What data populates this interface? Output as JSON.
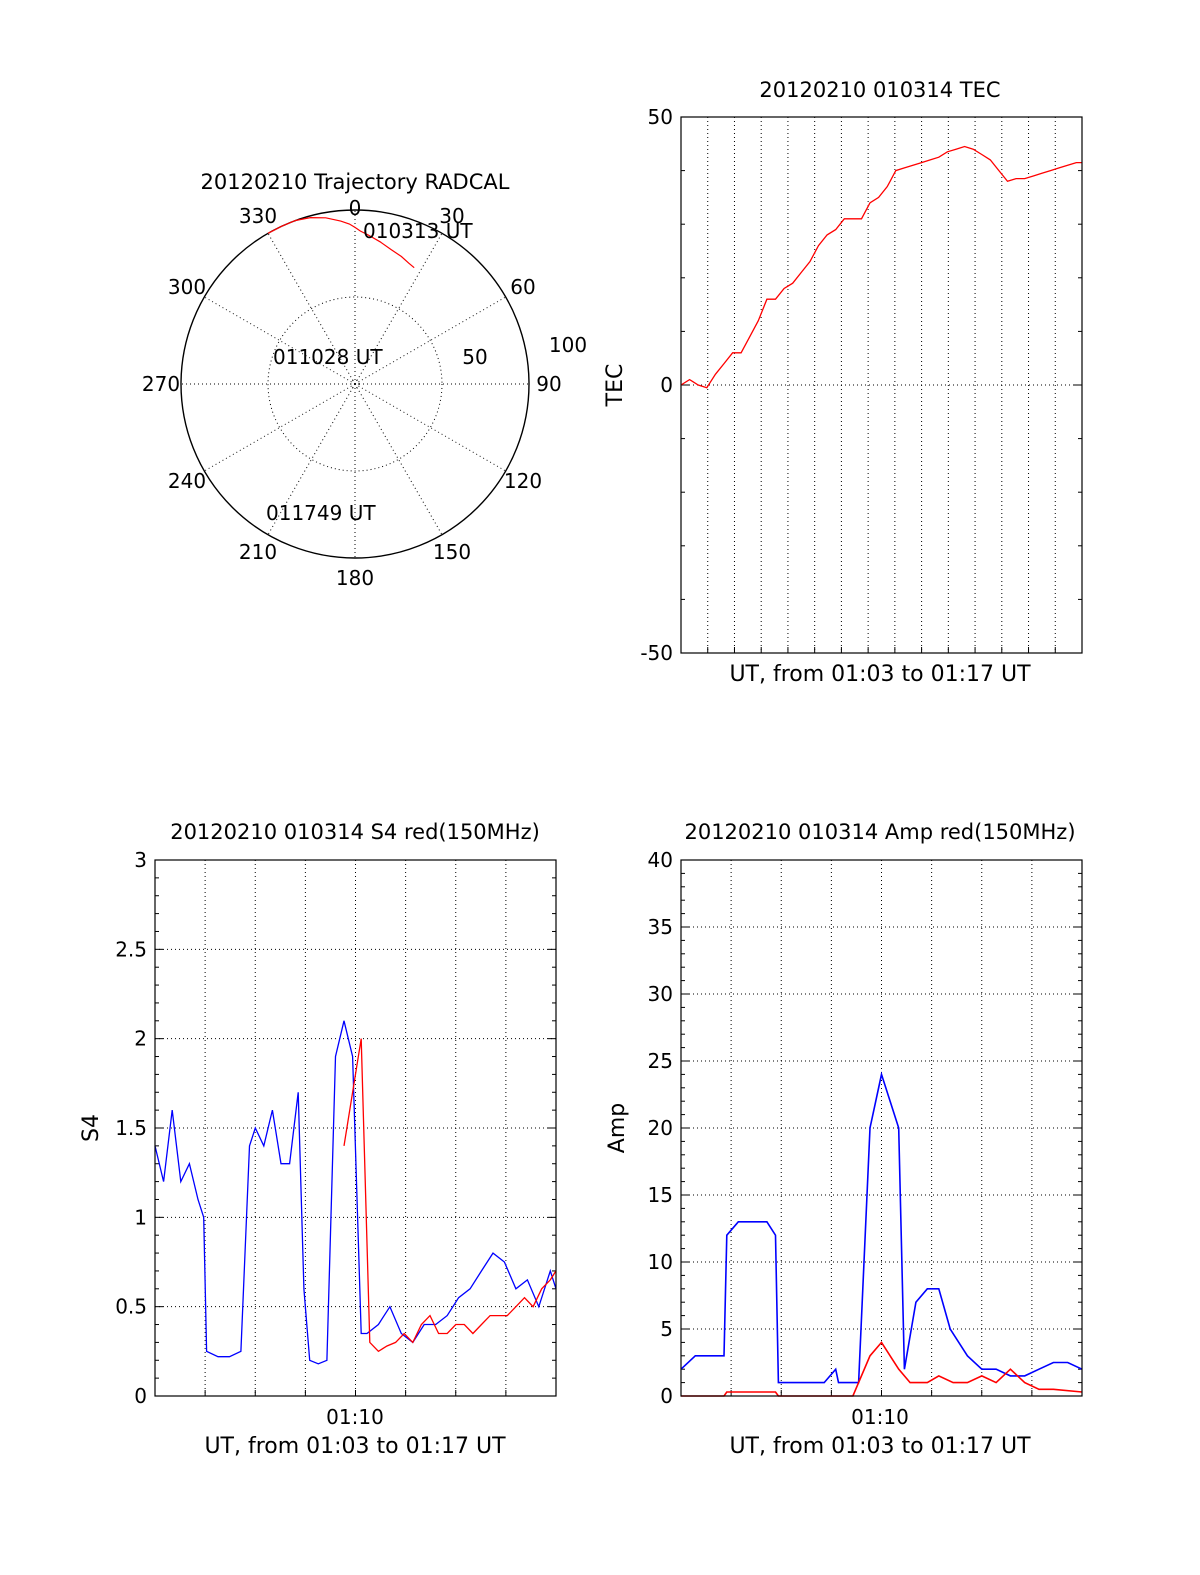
{
  "colors": {
    "red": "#ff0000",
    "blue": "#0000ff",
    "axis": "#000000"
  },
  "chart_data": [
    {
      "type": "polar",
      "title": "20120210 Trajectory RADCAL",
      "angle_labels": [
        "0",
        "30",
        "60",
        "90",
        "120",
        "150",
        "180",
        "210",
        "240",
        "270",
        "300",
        "330"
      ],
      "radial_labels": [
        "50",
        "100"
      ],
      "rlim": [
        0,
        100
      ],
      "grid": true,
      "annotations": [
        "010313 UT",
        "011028 UT",
        "011749 UT"
      ],
      "series": [
        {
          "color": "red",
          "points": [
            [
              27,
              75
            ],
            [
              24,
              76
            ],
            [
              20,
              78
            ],
            [
              15,
              80
            ],
            [
              10,
              83
            ],
            [
              5,
              86
            ],
            [
              2,
              88
            ],
            [
              0,
              90
            ],
            [
              -2,
              92
            ],
            [
              -5,
              94
            ],
            [
              -10,
              97
            ],
            [
              -15,
              99
            ],
            [
              -20,
              100
            ],
            [
              -25,
              100
            ],
            [
              -30,
              100
            ]
          ]
        }
      ]
    },
    {
      "type": "line",
      "title": "20120210 010314 TEC",
      "xlabel": "UT, from 01:03 to 01:17 UT",
      "ylabel": "TEC",
      "xlim": [
        0,
        14
      ],
      "ylim": [
        -50,
        50
      ],
      "yticks": [
        "-50",
        "0",
        "50"
      ],
      "grid": true,
      "series": [
        {
          "color": "red",
          "x": [
            0,
            0.3,
            0.6,
            0.9,
            1.2,
            1.5,
            1.8,
            2.1,
            2.4,
            2.7,
            3.0,
            3.3,
            3.6,
            3.9,
            4.2,
            4.5,
            4.8,
            5.1,
            5.4,
            5.7,
            6.0,
            6.3,
            6.6,
            6.9,
            7.2,
            7.5,
            7.8,
            8.1,
            8.4,
            8.7,
            9.0,
            9.3,
            9.6,
            9.9,
            10.2,
            10.5,
            10.8,
            11.1,
            11.4,
            11.7,
            12.0,
            12.3,
            12.6,
            12.9,
            13.2,
            13.5,
            13.8,
            14.0
          ],
          "y": [
            0,
            1,
            0,
            -0.5,
            2,
            4,
            6,
            6,
            9,
            12,
            16,
            16,
            18,
            19,
            21,
            23,
            26,
            28,
            29,
            31,
            31,
            31,
            34,
            35,
            37,
            40,
            40.5,
            41,
            41.5,
            42,
            42.5,
            43.5,
            44,
            44.5,
            44,
            43,
            42,
            40,
            38,
            38.5,
            38.5,
            39,
            39.5,
            40,
            40.5,
            41,
            41.5,
            41.5
          ]
        }
      ]
    },
    {
      "type": "line",
      "title": "20120210 010314 S4 red(150MHz)",
      "xlabel": "UT, from 01:03 to 01:17 UT",
      "ylabel": "S4",
      "xlim": [
        0,
        14
      ],
      "ylim": [
        0,
        3
      ],
      "xticks": [
        "01:10"
      ],
      "yticks": [
        "0",
        "0.5",
        "1",
        "1.5",
        "2",
        "2.5",
        "3"
      ],
      "grid": true,
      "series": [
        {
          "color": "blue",
          "x": [
            0,
            0.3,
            0.6,
            0.9,
            1.2,
            1.5,
            1.7,
            1.8,
            2.2,
            2.6,
            3.0,
            3.3,
            3.5,
            3.8,
            4.1,
            4.4,
            4.7,
            5.0,
            5.2,
            5.4,
            5.7,
            6.0,
            6.3,
            6.6,
            6.9,
            7.2,
            7.4,
            7.8,
            8.2,
            8.6,
            9.0,
            9.4,
            9.8,
            10.2,
            10.6,
            11.0,
            11.4,
            11.8,
            12.2,
            12.6,
            13.0,
            13.4,
            13.8,
            14.0
          ],
          "y": [
            1.4,
            1.2,
            1.6,
            1.2,
            1.3,
            1.1,
            1.0,
            0.25,
            0.22,
            0.22,
            0.25,
            1.4,
            1.5,
            1.4,
            1.6,
            1.3,
            1.3,
            1.7,
            0.6,
            0.2,
            0.18,
            0.2,
            1.9,
            2.1,
            1.9,
            0.35,
            0.35,
            0.4,
            0.5,
            0.35,
            0.3,
            0.4,
            0.4,
            0.45,
            0.55,
            0.6,
            0.7,
            0.8,
            0.75,
            0.6,
            0.65,
            0.5,
            0.7,
            0.6
          ]
        },
        {
          "color": "red",
          "x": [
            6.6,
            6.9,
            7.2,
            7.5,
            7.8,
            8.1,
            8.4,
            8.7,
            9.0,
            9.3,
            9.6,
            9.9,
            10.2,
            10.5,
            10.8,
            11.1,
            11.4,
            11.7,
            12.0,
            12.3,
            12.6,
            12.9,
            13.2,
            13.5,
            13.8,
            14.0
          ],
          "y": [
            1.4,
            1.7,
            2.0,
            0.3,
            0.25,
            0.28,
            0.3,
            0.35,
            0.3,
            0.4,
            0.45,
            0.35,
            0.35,
            0.4,
            0.4,
            0.35,
            0.4,
            0.45,
            0.45,
            0.45,
            0.5,
            0.55,
            0.5,
            0.6,
            0.65,
            0.7
          ]
        }
      ]
    },
    {
      "type": "line",
      "title": "20120210 010314 Amp red(150MHz)",
      "xlabel": "UT, from 01:03 to 01:17 UT",
      "ylabel": "Amp",
      "xlim": [
        0,
        14
      ],
      "ylim": [
        0,
        40
      ],
      "xticks": [
        "01:10"
      ],
      "yticks": [
        "0",
        "5",
        "10",
        "15",
        "20",
        "25",
        "30",
        "35",
        "40"
      ],
      "grid": true,
      "series": [
        {
          "color": "blue",
          "x": [
            0,
            0.5,
            1.0,
            1.5,
            1.6,
            2.0,
            2.5,
            3.0,
            3.3,
            3.4,
            4.0,
            5.0,
            5.4,
            5.5,
            5.9,
            6.2,
            6.6,
            7.0,
            7.6,
            7.8,
            8.2,
            8.6,
            9.0,
            9.4,
            10.0,
            10.5,
            11.0,
            11.5,
            12.0,
            12.5,
            13.0,
            13.5,
            14.0
          ],
          "y": [
            2,
            3,
            3,
            3,
            12,
            13,
            13,
            13,
            12,
            1,
            1,
            1,
            2,
            1,
            1,
            1,
            20,
            24,
            20,
            2,
            7,
            8,
            8,
            5,
            3,
            2,
            2,
            1.5,
            1.5,
            2,
            2.5,
            2.5,
            2
          ]
        },
        {
          "color": "red",
          "x": [
            0,
            1.5,
            1.6,
            3.3,
            3.4,
            6.0,
            6.2,
            6.6,
            7.0,
            7.6,
            8.0,
            8.6,
            9.0,
            9.5,
            10.0,
            10.5,
            11.0,
            11.5,
            12.0,
            12.5,
            13.0,
            14.0
          ],
          "y": [
            0,
            0,
            0.3,
            0.3,
            0,
            0,
            1,
            3,
            4,
            2,
            1,
            1,
            1.5,
            1,
            1,
            1.5,
            1,
            2,
            1,
            0.5,
            0.5,
            0.3
          ]
        }
      ]
    }
  ]
}
